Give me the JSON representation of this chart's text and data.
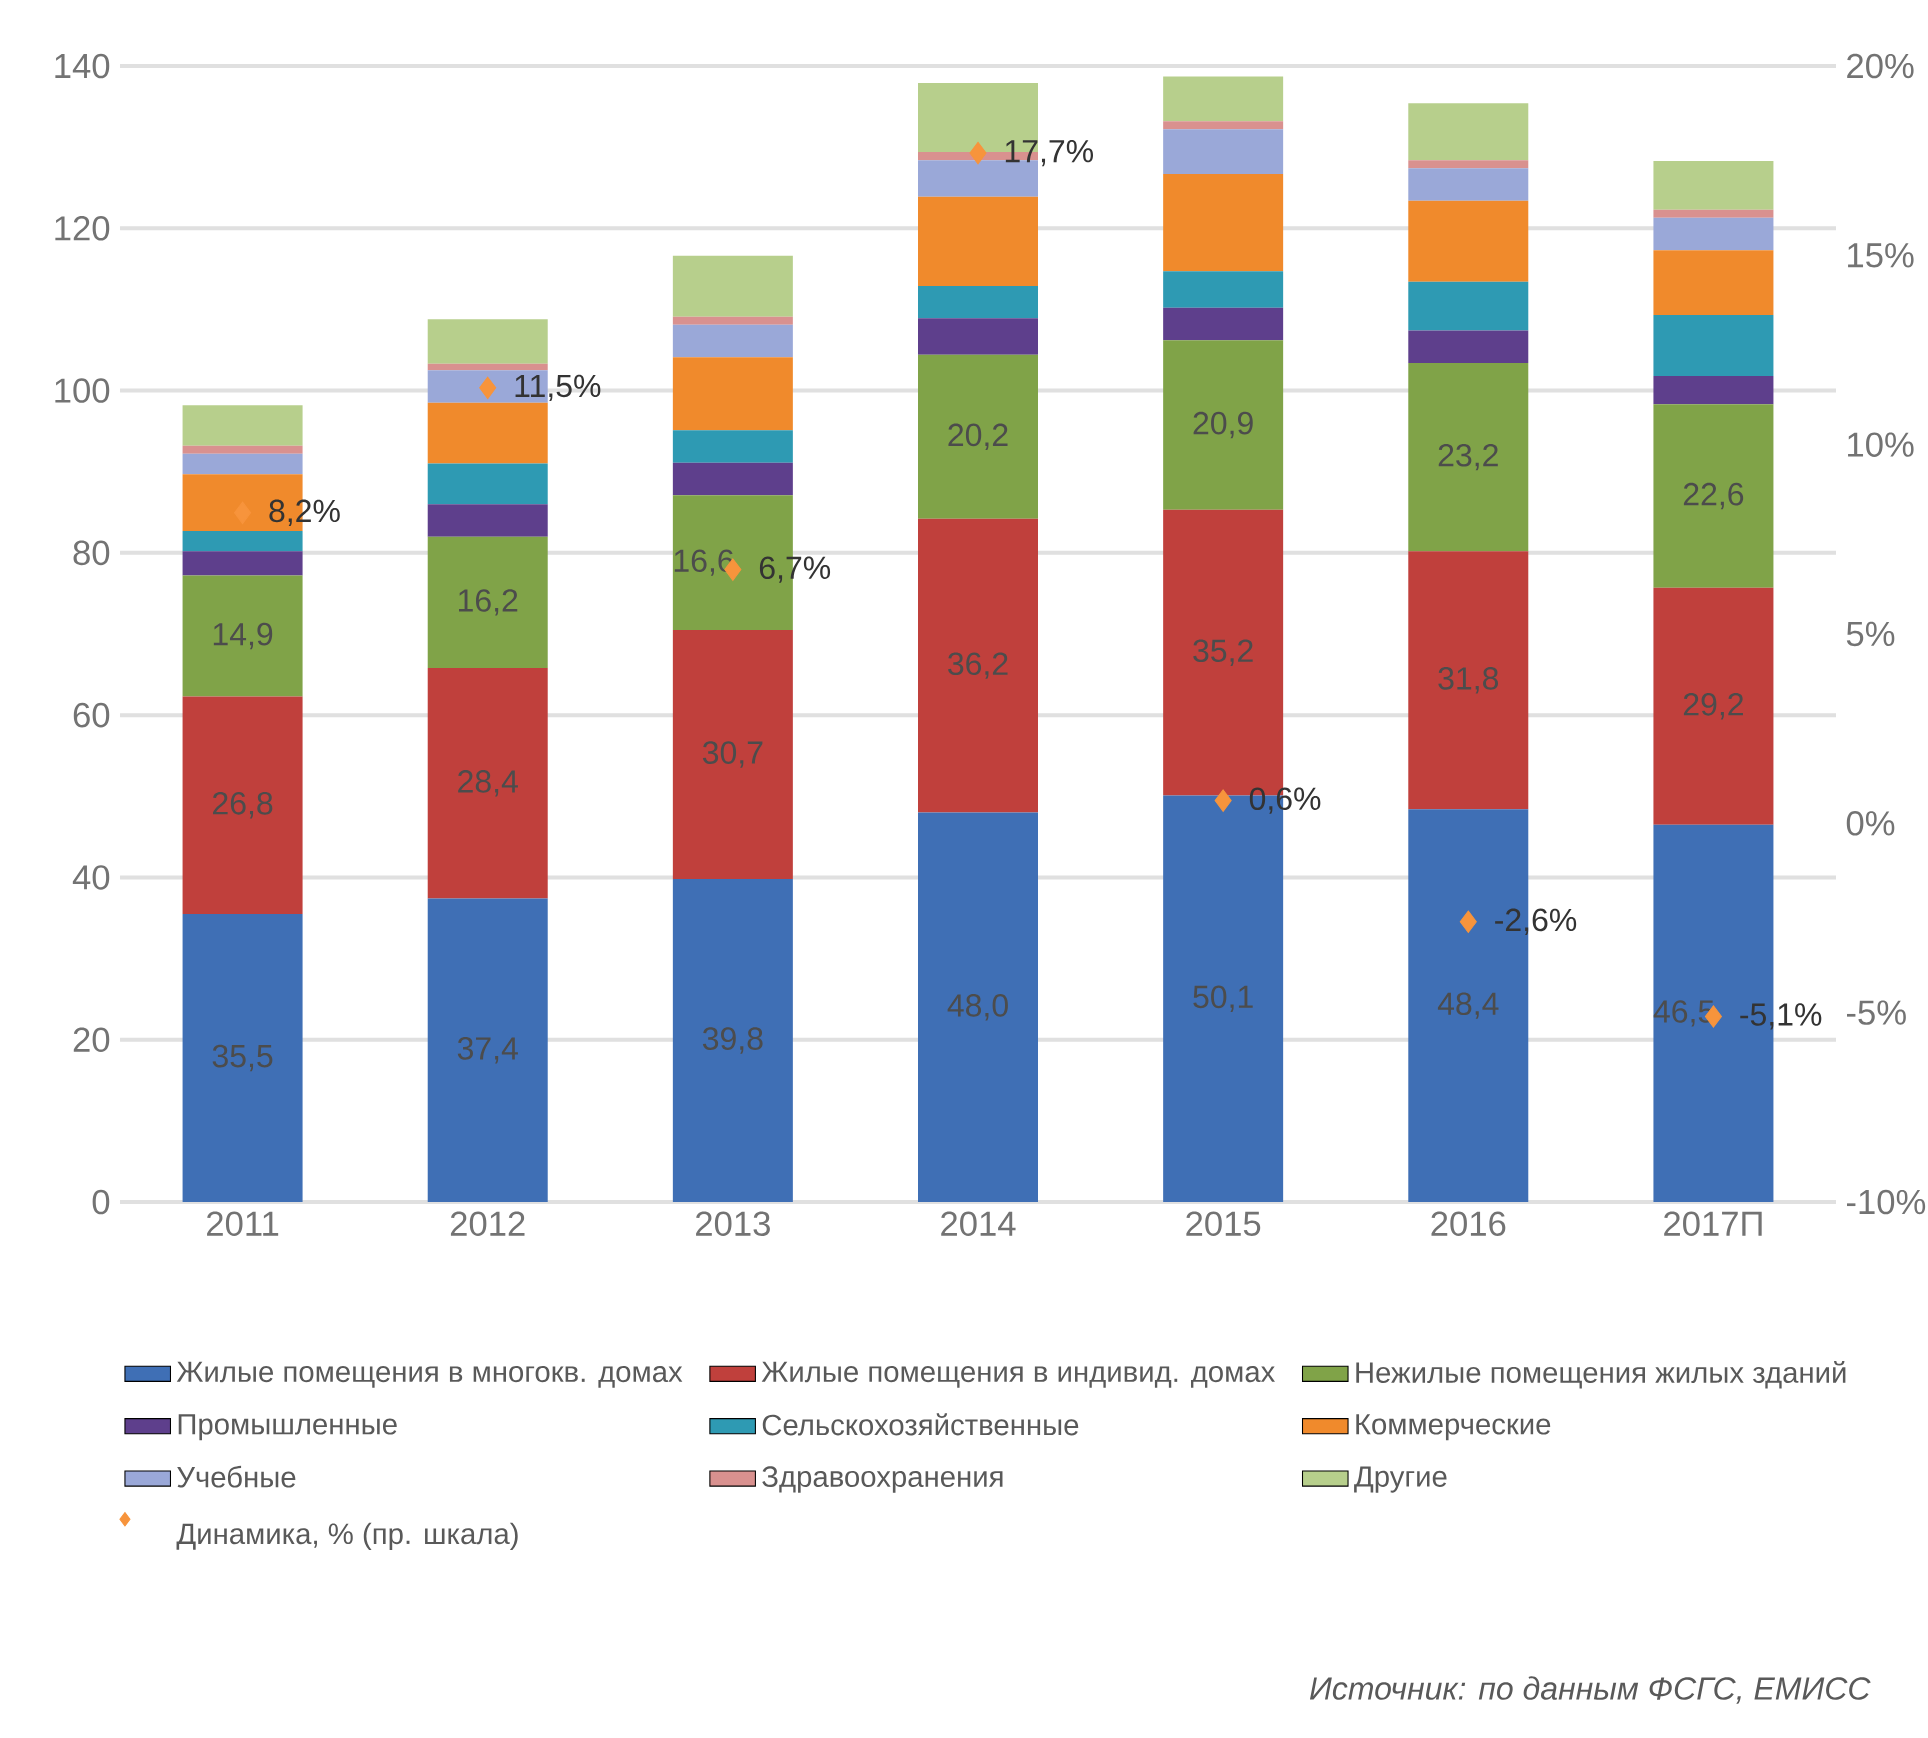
{
  "chart_data": {
    "type": "bar",
    "stacked": true,
    "categories": [
      "2011",
      "2012",
      "2013",
      "2014",
      "2015",
      "2016",
      "2017П"
    ],
    "ylim": [
      0,
      140
    ],
    "yticks": [
      0,
      20,
      40,
      60,
      80,
      100,
      120,
      140
    ],
    "y2lim": [
      -10,
      20
    ],
    "y2ticks": [
      {
        "value": -10,
        "label": "-10%"
      },
      {
        "value": -5,
        "label": "-5%"
      },
      {
        "value": 0,
        "label": "0%"
      },
      {
        "value": 5,
        "label": "5%"
      },
      {
        "value": 10,
        "label": "10%"
      },
      {
        "value": 15,
        "label": "15%"
      },
      {
        "value": 20,
        "label": "20%"
      }
    ],
    "grid": "y",
    "legend": "bottom",
    "series": [
      {
        "name": "Жилые помещения в многокв. домах",
        "color": "#3f6fb5",
        "values": [
          35.5,
          37.4,
          39.8,
          48.0,
          50.1,
          48.4,
          46.5
        ],
        "value_labels": [
          "35,5",
          "37,4",
          "39,8",
          "48,0",
          "50,1",
          "48,4",
          "46,5"
        ]
      },
      {
        "name": "Жилые помещения в индивид. домах",
        "color": "#c0403c",
        "values": [
          26.8,
          28.4,
          30.7,
          36.2,
          35.2,
          31.8,
          29.2
        ],
        "value_labels": [
          "26,8",
          "28,4",
          "30,7",
          "36,2",
          "35,2",
          "31,8",
          "29,2"
        ]
      },
      {
        "name": "Нежилые помещения жилых зданий",
        "color": "#80a348",
        "values": [
          14.9,
          16.2,
          16.6,
          20.2,
          20.9,
          23.2,
          22.6
        ],
        "value_labels": [
          "14,9",
          "16,2",
          "16,6",
          "20,2",
          "20,9",
          "23,2",
          "22,6"
        ]
      },
      {
        "name": "Промышленные",
        "color": "#5e3f8c",
        "values": [
          3.0,
          4.0,
          4.0,
          4.5,
          4.0,
          4.0,
          3.5
        ]
      },
      {
        "name": "Сельскохозяйственные",
        "color": "#2e9ab3",
        "values": [
          2.5,
          5.0,
          4.0,
          4.0,
          4.5,
          6.0,
          7.5
        ]
      },
      {
        "name": "Коммерческие",
        "color": "#f08a2c",
        "values": [
          7.0,
          7.5,
          9.0,
          11.0,
          12.0,
          10.0,
          8.0
        ]
      },
      {
        "name": "Учебные",
        "color": "#9aa8d8",
        "values": [
          2.5,
          4.0,
          4.0,
          4.5,
          5.5,
          4.0,
          4.0
        ]
      },
      {
        "name": "Здравоохранения",
        "color": "#d9918f",
        "values": [
          1.0,
          0.8,
          1.0,
          1.0,
          1.0,
          1.0,
          1.0
        ]
      },
      {
        "name": "Другие",
        "color": "#b7cf8c",
        "values": [
          5.0,
          5.5,
          7.5,
          8.5,
          5.5,
          7.0,
          6.0
        ]
      },
      {
        "name": "Динамика, % (пр. шкала)",
        "type": "scatter",
        "axis": "y2",
        "marker": "diamond",
        "color": "#f7943c",
        "values": [
          8.2,
          11.5,
          6.7,
          17.7,
          0.6,
          -2.6,
          -5.1
        ],
        "value_labels": [
          "8,2%",
          "11,5%",
          "6,7%",
          "17,7%",
          "0,6%",
          "-2,6%",
          "-5,1%"
        ]
      }
    ],
    "annotations": [
      "Источник: по данным ФСГС, ЕМИСС"
    ]
  }
}
